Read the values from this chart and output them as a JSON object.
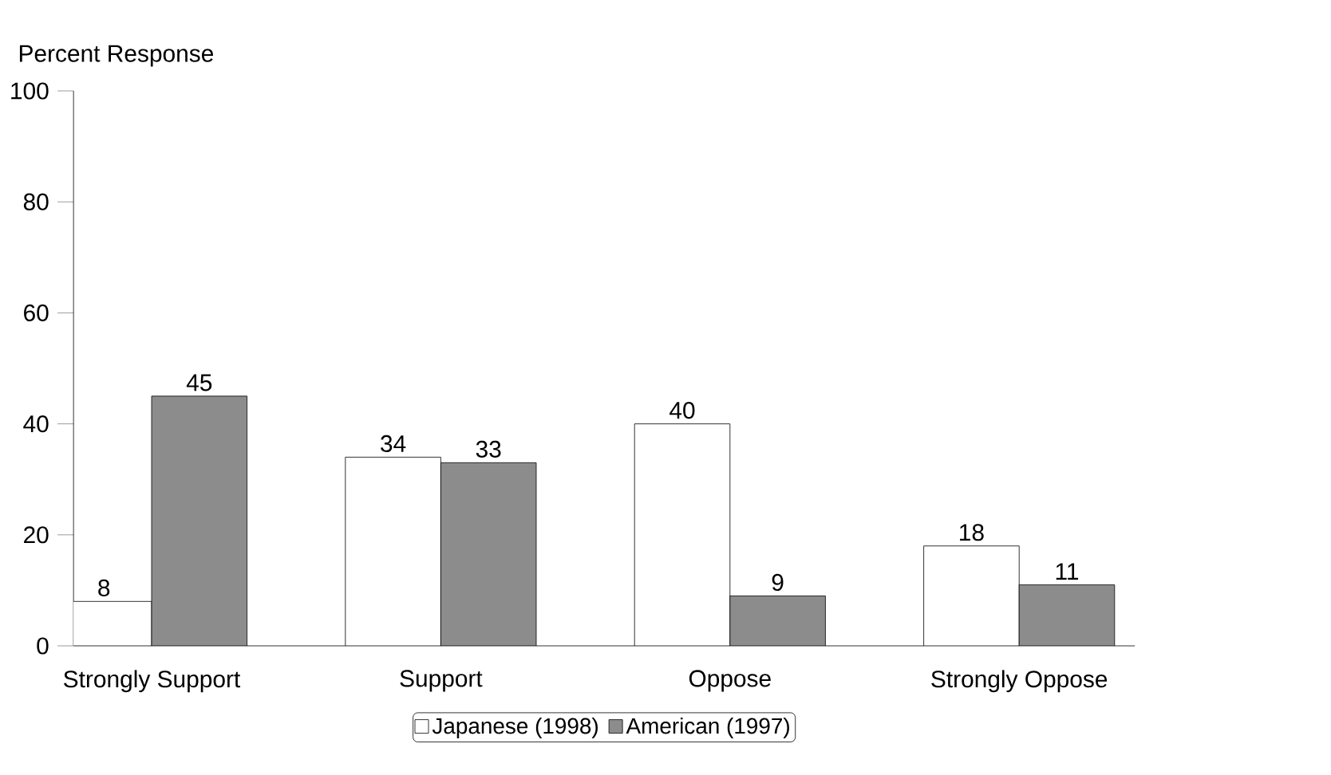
{
  "chart_data": {
    "type": "bar",
    "ylabel": "Percent Response",
    "categories": [
      "Strongly Support",
      "Support",
      "Oppose",
      "Strongly Oppose"
    ],
    "series": [
      {
        "name": "Japanese (1998)",
        "color": "#ffffff",
        "values": [
          8,
          34,
          40,
          18
        ]
      },
      {
        "name": "American (1997)",
        "color": "#8c8c8c",
        "values": [
          45,
          33,
          9,
          11
        ]
      }
    ],
    "ylim": [
      0,
      100
    ],
    "yticks": [
      0,
      20,
      40,
      60,
      80,
      100
    ],
    "data_labels": true,
    "legend": "bottom"
  }
}
